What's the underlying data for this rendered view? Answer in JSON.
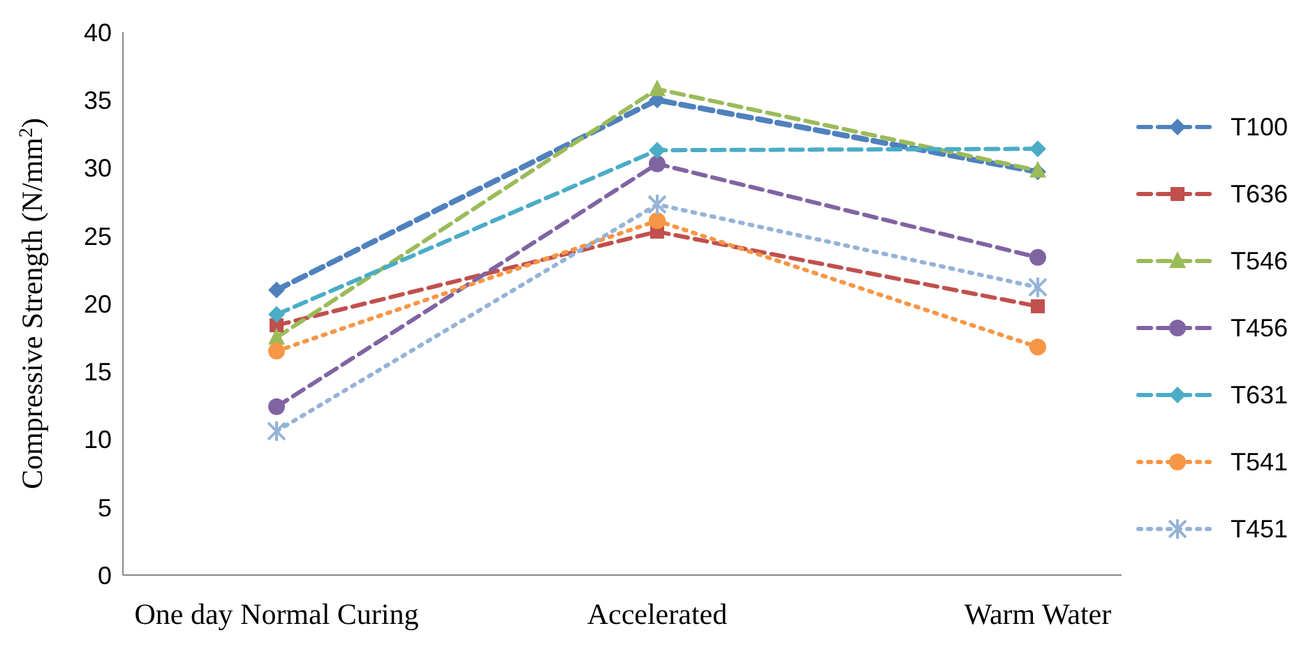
{
  "chart_data": {
    "type": "line",
    "ylabel": "Compressive Strength (N/mm$^{2}$)",
    "categories": [
      "One day Normal Curing",
      "Accelerated",
      "Warm Water"
    ],
    "ylim": [
      0,
      40
    ],
    "yticks": [
      0,
      5,
      10,
      15,
      20,
      25,
      30,
      35,
      40
    ],
    "grid": false,
    "legend": "right",
    "series": [
      {
        "name": "T100",
        "color": "#4f81bd",
        "values": [
          21.0,
          35.0,
          29.7
        ],
        "marker": "diamond",
        "line_style": "dashed"
      },
      {
        "name": "T636",
        "color": "#c0504d",
        "values": [
          18.4,
          25.3,
          19.8
        ],
        "marker": "square",
        "line_style": "dashed"
      },
      {
        "name": "T546",
        "color": "#9bbb59",
        "values": [
          17.5,
          35.8,
          29.8
        ],
        "marker": "triangle",
        "line_style": "dashed"
      },
      {
        "name": "T456",
        "color": "#8064a2",
        "values": [
          12.4,
          30.3,
          23.4
        ],
        "marker": "circle",
        "line_style": "dashed"
      },
      {
        "name": "T631",
        "color": "#4bacc6",
        "values": [
          19.2,
          31.3,
          31.4
        ],
        "marker": "diamond",
        "line_style": "dashed"
      },
      {
        "name": "T541",
        "color": "#f79646",
        "values": [
          16.5,
          26.1,
          16.8
        ],
        "marker": "circle",
        "line_style": "dotted"
      },
      {
        "name": "T451",
        "color": "#95b3d7",
        "values": [
          10.6,
          27.3,
          21.2
        ],
        "marker": "cross",
        "line_style": "dotted"
      }
    ]
  }
}
